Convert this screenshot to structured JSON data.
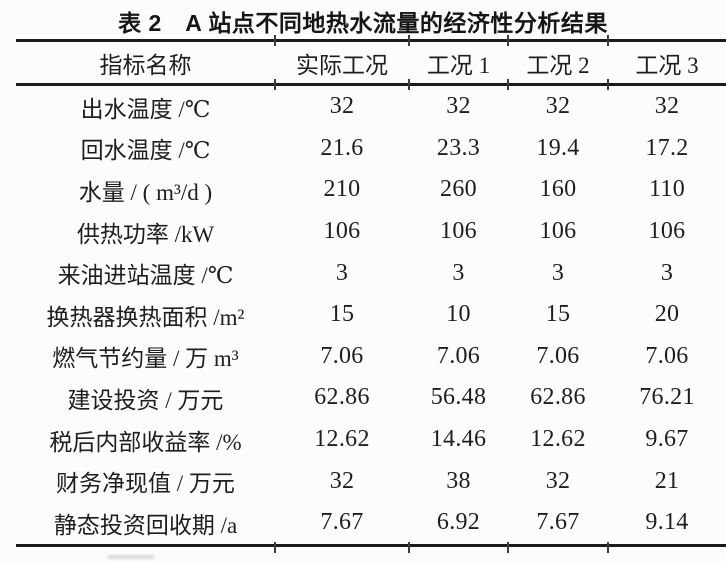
{
  "title": "表 2　A 站点不同地热水流量的经济性分析结果",
  "table": {
    "columns": [
      "指标名称",
      "实际工况",
      "工况 1",
      "工况 2",
      "工况 3"
    ],
    "rows": [
      {
        "label": "出水温度 /℃",
        "values": [
          "32",
          "32",
          "32",
          "32"
        ]
      },
      {
        "label": "回水温度 /℃",
        "values": [
          "21.6",
          "23.3",
          "19.4",
          "17.2"
        ]
      },
      {
        "label": "水量 / ( m³/d )",
        "values": [
          "210",
          "260",
          "160",
          "110"
        ]
      },
      {
        "label": "供热功率 /kW",
        "values": [
          "106",
          "106",
          "106",
          "106"
        ]
      },
      {
        "label": "来油进站温度 /℃",
        "values": [
          "3",
          "3",
          "3",
          "3"
        ]
      },
      {
        "label": "换热器换热面积 /m²",
        "values": [
          "15",
          "10",
          "15",
          "20"
        ]
      },
      {
        "label": "燃气节约量 / 万 m³",
        "values": [
          "7.06",
          "7.06",
          "7.06",
          "7.06"
        ]
      },
      {
        "label": "建设投资 / 万元",
        "values": [
          "62.86",
          "56.48",
          "62.86",
          "76.21"
        ]
      },
      {
        "label": "税后内部收益率 /%",
        "values": [
          "12.62",
          "14.46",
          "12.62",
          "9.67"
        ]
      },
      {
        "label": "财务净现值 / 万元",
        "values": [
          "32",
          "38",
          "32",
          "21"
        ]
      },
      {
        "label": "静态投资回收期 /a",
        "values": [
          "7.67",
          "6.92",
          "7.67",
          "9.14"
        ]
      }
    ]
  },
  "colors": {
    "rule": "#1b1b1b",
    "text": "#1e1e1e",
    "background": "#fcfcfc"
  }
}
